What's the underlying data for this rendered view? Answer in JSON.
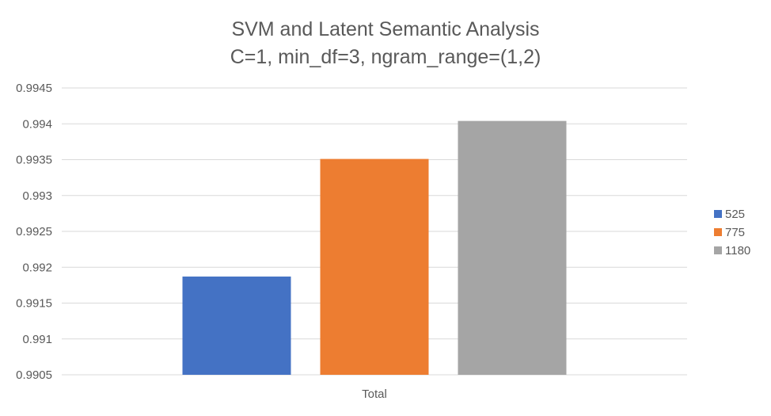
{
  "chart_data": {
    "type": "bar",
    "title": "SVM and Latent Semantic Analysis",
    "subtitle": "C=1, min_df=3, ngram_range=(1,2)",
    "categories": [
      "Total"
    ],
    "series": [
      {
        "name": "525",
        "values": [
          0.99187
        ],
        "color": "#4472c4"
      },
      {
        "name": "775",
        "values": [
          0.99351
        ],
        "color": "#ed7d31"
      },
      {
        "name": "1180",
        "values": [
          0.99404
        ],
        "color": "#a5a5a5"
      }
    ],
    "xlabel": "",
    "ylabel": "",
    "ylim": [
      0.9905,
      0.9945
    ],
    "yticks": [
      "0.9905",
      "0.991",
      "0.9915",
      "0.992",
      "0.9925",
      "0.993",
      "0.9935",
      "0.994",
      "0.9945"
    ],
    "grid": true,
    "legend_position": "right"
  }
}
